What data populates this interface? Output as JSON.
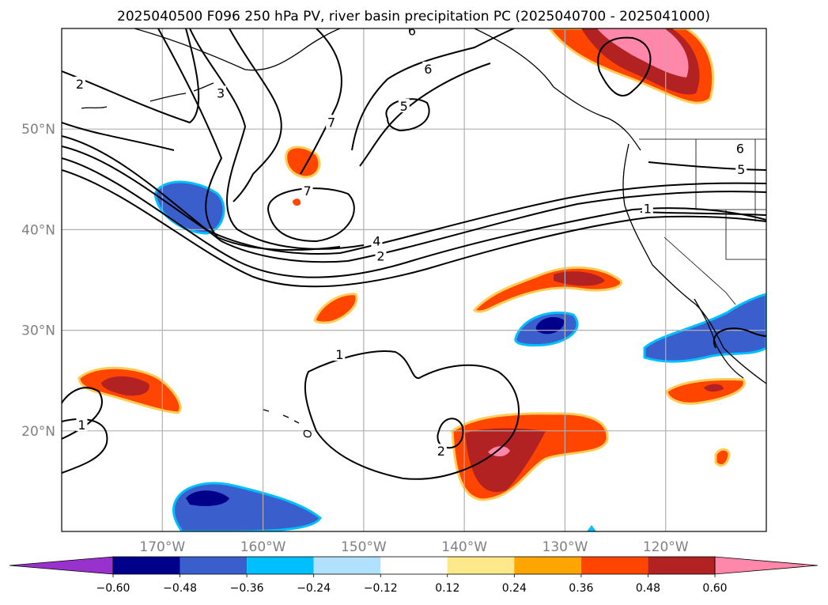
{
  "chart_data": {
    "type": "map",
    "title": "2025040500 F096 250 hPa PV, river basin precipitation PC (2025040700 - 2025041000)",
    "lon_range": [
      -180,
      -110
    ],
    "lat_range": [
      10,
      60
    ],
    "lon_ticks": [
      -170,
      -160,
      -150,
      -140,
      -130,
      -120
    ],
    "lon_tick_labels": [
      "170°W",
      "160°W",
      "150°W",
      "140°W",
      "130°W",
      "120°W"
    ],
    "lat_ticks": [
      20,
      30,
      40,
      50
    ],
    "lat_tick_labels": [
      "20°N",
      "30°N",
      "40°N",
      "50°N"
    ],
    "grid": true,
    "colorbar": {
      "orientation": "horizontal",
      "extend": "both",
      "levels": [
        -0.6,
        -0.48,
        -0.36,
        -0.24,
        -0.12,
        0.12,
        0.24,
        0.36,
        0.48,
        0.6
      ],
      "tick_labels": [
        "−0.60",
        "−0.48",
        "−0.36",
        "−0.24",
        "−0.12",
        "0.12",
        "0.24",
        "0.36",
        "0.48",
        "0.60"
      ],
      "colors": [
        "#9932cc",
        "#00008b",
        "#3a5fcd",
        "#00bfff",
        "#b0e2ff",
        "#ffffff",
        "#fee98a",
        "#ffa500",
        "#ff4500",
        "#b22222",
        "#ff88aa"
      ]
    },
    "contour_labels": [
      {
        "text": "6",
        "lon": -145.2,
        "lat": 59.8
      },
      {
        "text": "2",
        "lon": -178.2,
        "lat": 54.5
      },
      {
        "text": "3",
        "lon": -164.2,
        "lat": 53.6
      },
      {
        "text": "6",
        "lon": -143.6,
        "lat": 56.0
      },
      {
        "text": "5",
        "lon": -146.0,
        "lat": 52.3
      },
      {
        "text": "7",
        "lon": -153.2,
        "lat": 50.7
      },
      {
        "text": "7",
        "lon": -155.6,
        "lat": 43.9
      },
      {
        "text": "4",
        "lon": -148.7,
        "lat": 38.9
      },
      {
        "text": "2",
        "lon": -148.3,
        "lat": 37.4
      },
      {
        "text": "6",
        "lon": -112.6,
        "lat": 48.1
      },
      {
        "text": "5",
        "lon": -112.5,
        "lat": 46.0
      },
      {
        "text": "1",
        "lon": -121.8,
        "lat": 42.1
      },
      {
        "text": "1",
        "lon": -152.4,
        "lat": 27.6
      },
      {
        "text": "1",
        "lon": -178.0,
        "lat": 20.6
      },
      {
        "text": "2",
        "lon": -142.3,
        "lat": 18.0
      }
    ],
    "shaded_regions": [
      {
        "name": "pc-positive-gulf-alaska",
        "value": 0.6,
        "sign": "positive"
      },
      {
        "name": "pc-positive-north-pacific-small",
        "value": 0.4,
        "sign": "positive"
      },
      {
        "name": "pc-negative-north-pacific",
        "value": -0.4,
        "sign": "negative"
      },
      {
        "name": "pc-positive-central-pacific",
        "value": 0.36,
        "sign": "positive"
      },
      {
        "name": "pc-positive-subtropical-east",
        "value": 0.48,
        "sign": "positive"
      },
      {
        "name": "pc-negative-subtropical-east",
        "value": -0.55,
        "sign": "negative"
      },
      {
        "name": "pc-negative-california",
        "value": -0.4,
        "sign": "negative"
      },
      {
        "name": "pc-positive-baja",
        "value": 0.48,
        "sign": "positive"
      },
      {
        "name": "pc-positive-west-subtropics",
        "value": 0.5,
        "sign": "positive"
      },
      {
        "name": "pc-positive-hawaii-east",
        "value": 0.65,
        "sign": "positive"
      },
      {
        "name": "pc-negative-south-hawaii",
        "value": -0.5,
        "sign": "negative"
      },
      {
        "name": "pc-positive-mexico-small",
        "value": 0.4,
        "sign": "positive"
      }
    ]
  }
}
